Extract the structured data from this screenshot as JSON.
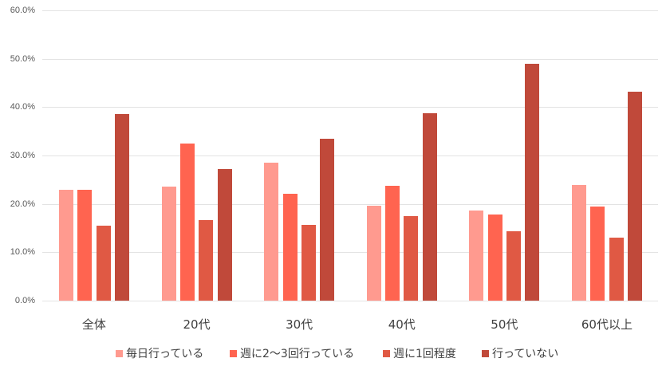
{
  "chart_data": {
    "type": "bar",
    "title": "",
    "xlabel": "",
    "ylabel": "",
    "ylim": [
      0,
      60
    ],
    "y_ticks": [
      "0.0%",
      "10.0%",
      "20.0%",
      "30.0%",
      "40.0%",
      "50.0%",
      "60.0%"
    ],
    "grid": true,
    "legend_position": "bottom",
    "categories": [
      "全体",
      "20代",
      "30代",
      "40代",
      "50代",
      "60代以上"
    ],
    "series": [
      {
        "name": "毎日行っている",
        "color": "#FF9A8F",
        "values": [
          22.9,
          23.6,
          28.5,
          19.6,
          18.6,
          23.9
        ]
      },
      {
        "name": "週に2〜3回行っている",
        "color": "#FF6450",
        "values": [
          22.9,
          32.5,
          22.1,
          23.8,
          17.8,
          19.5
        ]
      },
      {
        "name": "週に1回程度",
        "color": "#E05944",
        "values": [
          15.5,
          16.7,
          15.7,
          17.5,
          14.4,
          13.0
        ]
      },
      {
        "name": "行っていない",
        "color": "#C0493A",
        "values": [
          38.6,
          27.2,
          33.5,
          38.8,
          49.0,
          43.2
        ]
      }
    ]
  }
}
